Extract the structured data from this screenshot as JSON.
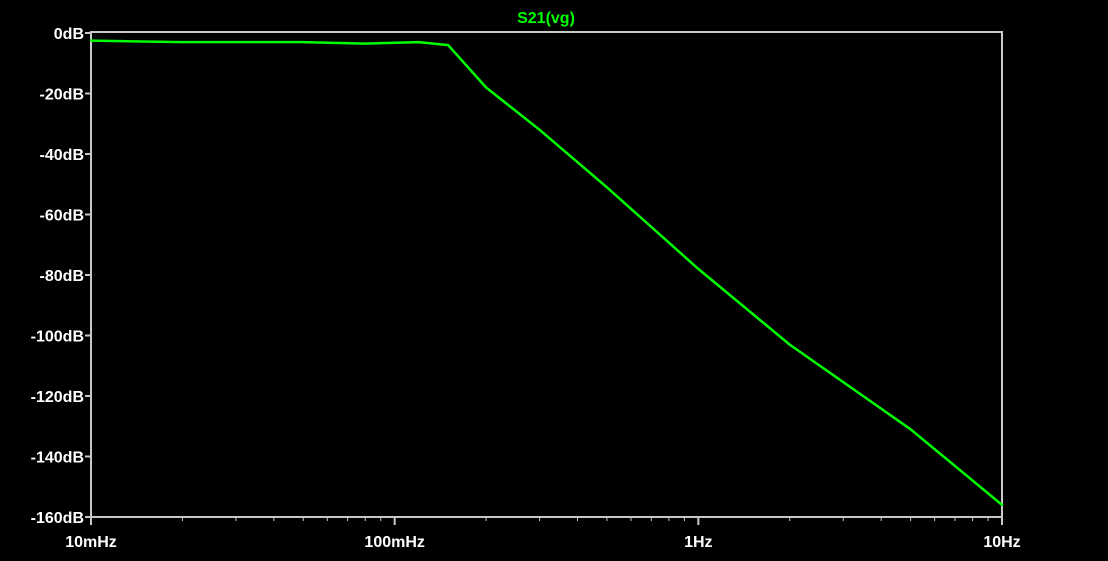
{
  "chart_data": {
    "type": "line",
    "title": "S21(vg)",
    "xlabel": "",
    "ylabel": "",
    "x_scale": "log",
    "xlim": [
      0.01,
      10
    ],
    "ylim": [
      -160,
      0
    ],
    "grid": false,
    "x_ticks": [
      {
        "value": 0.01,
        "label": "10mHz"
      },
      {
        "value": 0.1,
        "label": "100mHz"
      },
      {
        "value": 1,
        "label": "1Hz"
      },
      {
        "value": 10,
        "label": "10Hz"
      }
    ],
    "y_ticks": [
      {
        "value": 0,
        "label": "0dB"
      },
      {
        "value": -20,
        "label": "-20dB"
      },
      {
        "value": -40,
        "label": "-40dB"
      },
      {
        "value": -60,
        "label": "-60dB"
      },
      {
        "value": -80,
        "label": "-80dB"
      },
      {
        "value": -100,
        "label": "-100dB"
      },
      {
        "value": -120,
        "label": "-120dB"
      },
      {
        "value": -140,
        "label": "-140dB"
      },
      {
        "value": -160,
        "label": "-160dB"
      }
    ],
    "series": [
      {
        "name": "S21(vg)",
        "color": "#00ff00",
        "x": [
          0.01,
          0.02,
          0.05,
          0.08,
          0.12,
          0.15,
          0.2,
          0.3,
          0.5,
          1,
          2,
          5,
          10
        ],
        "y": [
          -2.5,
          -3.0,
          -3.0,
          -3.5,
          -3.0,
          -4.0,
          -18.0,
          -32.0,
          -51.0,
          -78.0,
          -103.0,
          -131.0,
          -156.0
        ]
      }
    ]
  },
  "colors": {
    "background": "#000000",
    "frame": "#ffffff",
    "trace": "#00ff00"
  }
}
